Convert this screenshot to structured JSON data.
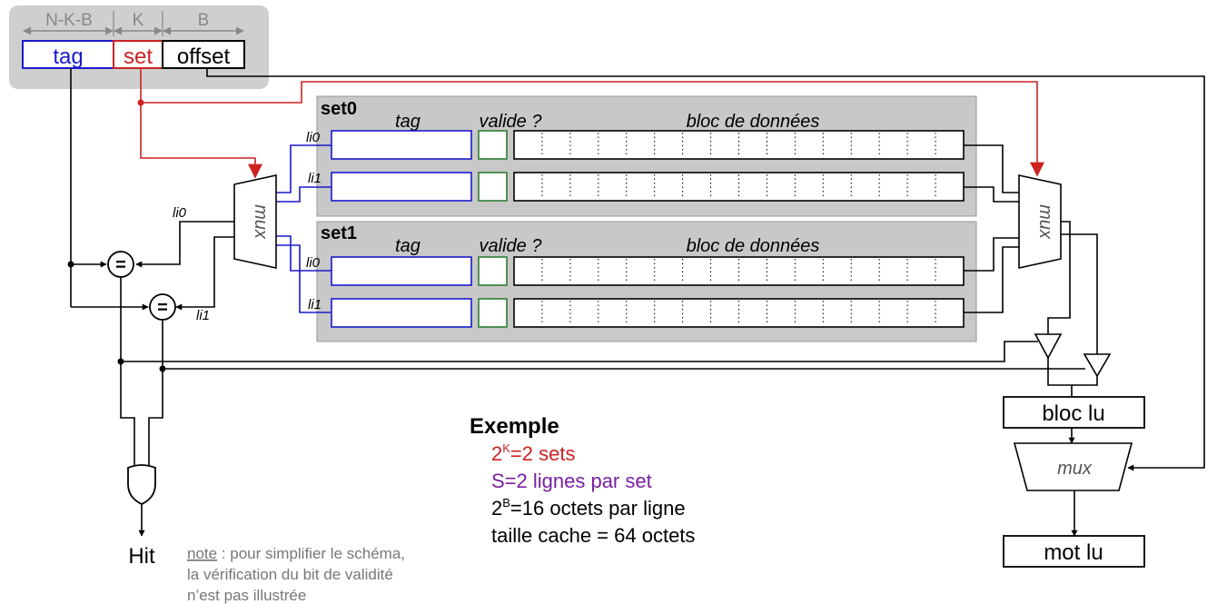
{
  "address": {
    "bit_labels": [
      "N-K-B",
      "K",
      "B"
    ],
    "fields": {
      "tag": "tag",
      "set": "set",
      "offset": "offset"
    }
  },
  "cache": {
    "sets": [
      {
        "name": "set0",
        "line_labels": [
          "li0",
          "li1"
        ]
      },
      {
        "name": "set1",
        "line_labels": [
          "li0",
          "li1"
        ]
      }
    ],
    "headers": {
      "tag": "tag",
      "valid": "valide ?",
      "data": "bloc de données"
    }
  },
  "mux_label": "mux",
  "comparator_symbol": "=",
  "comparator_inputs": [
    "li0",
    "li1"
  ],
  "hit_label": "Hit",
  "note": {
    "underlined": "note",
    "line1": " : pour simplifier le schéma,",
    "line2": "la vérification du bit de validité",
    "line3": "n’est pas illustrée"
  },
  "example": {
    "title": "Exemple",
    "line1_prefix": "2",
    "line1_sup": "K",
    "line1_suffix": "=2 sets",
    "line2": "S=2 lignes par set",
    "line3_prefix": "2",
    "line3_sup": "B",
    "line3_suffix": "=16 octets par ligne",
    "line4": "taille cache = 64 octets"
  },
  "outputs": {
    "block_read": "bloc lu",
    "word_read": "mot lu"
  },
  "colors": {
    "tag": "#1a1acc",
    "set": "#cc2222",
    "valid": "#2e7d32",
    "panel": "#c8c8c8",
    "example_line1": "#cc2222",
    "example_line2": "#7b1fa2",
    "note_text": "#777777"
  }
}
